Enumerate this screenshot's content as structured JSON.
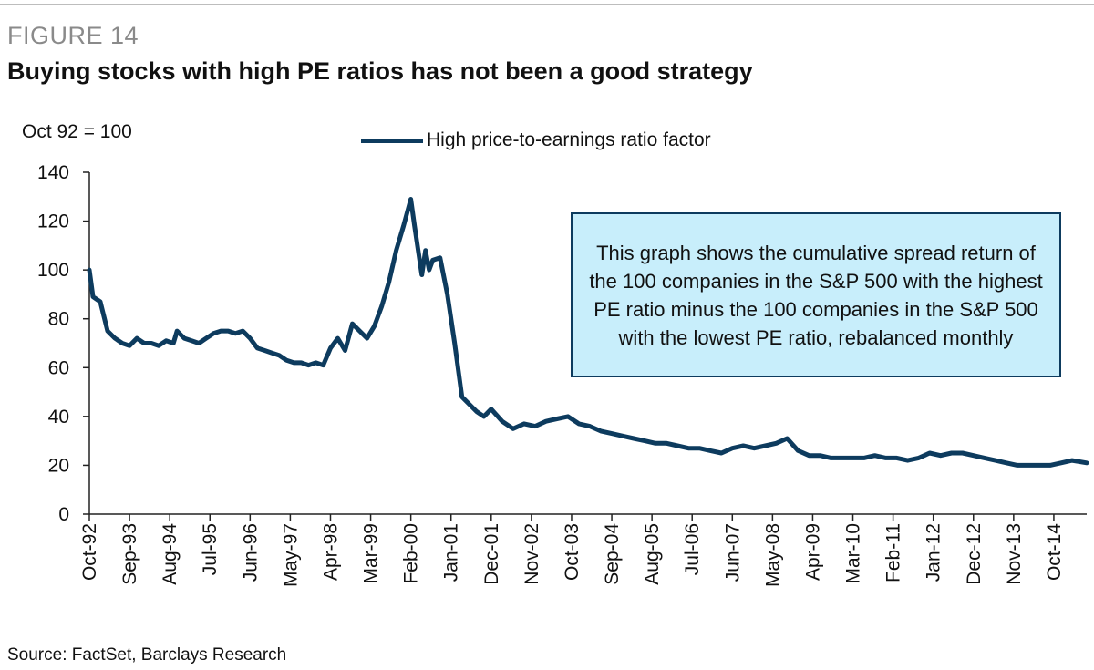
{
  "figure": {
    "label": "FIGURE 14",
    "title": "Buying stocks with high PE ratios has not been a good strategy",
    "source": "Source: FactSet, Barclays Research"
  },
  "colors": {
    "series": "#0d3b5e",
    "callout_bg": "#c8eefb",
    "axis": "#222222"
  },
  "chart_data": {
    "type": "line",
    "ylabel": "Oct 92 = 100",
    "ylim": [
      0,
      140
    ],
    "yticks": [
      0,
      20,
      40,
      60,
      80,
      100,
      120,
      140
    ],
    "xlim": [
      "1992-10",
      "2015-07"
    ],
    "xtick_labels": [
      "Oct-92",
      "Sep-93",
      "Aug-94",
      "Jul-95",
      "Jun-96",
      "May-97",
      "Apr-98",
      "Mar-99",
      "Feb-00",
      "Jan-01",
      "Dec-01",
      "Nov-02",
      "Oct-03",
      "Sep-04",
      "Aug-05",
      "Jul-06",
      "Jun-07",
      "May-08",
      "Apr-09",
      "Mar-10",
      "Feb-11",
      "Jan-12",
      "Dec-12",
      "Nov-13",
      "Oct-14"
    ],
    "annotation": "This graph shows the cumulative spread return of the 100 companies in the S&P 500 with the highest PE ratio minus the 100 companies in the S&P 500 with the lowest PE ratio, rebalanced monthly",
    "series": [
      {
        "name": "High price-to-earnings ratio factor",
        "x": [
          "1992-10",
          "1992-11",
          "1993-01",
          "1993-03",
          "1993-05",
          "1993-07",
          "1993-09",
          "1993-11",
          "1994-01",
          "1994-03",
          "1994-05",
          "1994-07",
          "1994-09",
          "1994-10",
          "1994-12",
          "1995-02",
          "1995-04",
          "1995-06",
          "1995-08",
          "1995-10",
          "1995-12",
          "1996-02",
          "1996-04",
          "1996-06",
          "1996-08",
          "1996-10",
          "1996-12",
          "1997-02",
          "1997-04",
          "1997-06",
          "1997-08",
          "1997-10",
          "1997-12",
          "1998-02",
          "1998-04",
          "1998-06",
          "1998-08",
          "1998-10",
          "1998-12",
          "1999-02",
          "1999-04",
          "1999-06",
          "1999-08",
          "1999-10",
          "1999-12",
          "2000-02",
          "2000-03",
          "2000-04",
          "2000-05",
          "2000-06",
          "2000-07",
          "2000-08",
          "2000-10",
          "2000-12",
          "2001-02",
          "2001-04",
          "2001-06",
          "2001-08",
          "2001-10",
          "2001-12",
          "2002-03",
          "2002-06",
          "2002-09",
          "2002-12",
          "2003-03",
          "2003-06",
          "2003-09",
          "2003-12",
          "2004-03",
          "2004-06",
          "2004-09",
          "2004-12",
          "2005-03",
          "2005-06",
          "2005-09",
          "2005-12",
          "2006-03",
          "2006-06",
          "2006-09",
          "2006-12",
          "2007-03",
          "2007-06",
          "2007-09",
          "2007-12",
          "2008-03",
          "2008-06",
          "2008-09",
          "2008-12",
          "2009-03",
          "2009-06",
          "2009-09",
          "2009-12",
          "2010-03",
          "2010-06",
          "2010-09",
          "2010-12",
          "2011-03",
          "2011-06",
          "2011-09",
          "2011-12",
          "2012-03",
          "2012-06",
          "2012-09",
          "2012-12",
          "2013-03",
          "2013-06",
          "2013-09",
          "2013-12",
          "2014-03",
          "2014-06",
          "2014-09",
          "2014-12",
          "2015-03",
          "2015-07"
        ],
        "values": [
          100,
          89,
          87,
          75,
          72,
          70,
          69,
          72,
          70,
          70,
          69,
          71,
          70,
          75,
          72,
          71,
          70,
          72,
          74,
          75,
          75,
          74,
          75,
          72,
          68,
          67,
          66,
          65,
          63,
          62,
          62,
          61,
          62,
          61,
          68,
          72,
          67,
          78,
          75,
          72,
          77,
          85,
          95,
          108,
          118,
          129,
          118,
          108,
          98,
          108,
          100,
          104,
          105,
          90,
          70,
          48,
          45,
          42,
          40,
          43,
          38,
          35,
          37,
          36,
          38,
          39,
          40,
          37,
          36,
          34,
          33,
          32,
          31,
          30,
          29,
          29,
          28,
          27,
          27,
          26,
          25,
          27,
          28,
          27,
          28,
          29,
          31,
          26,
          24,
          24,
          23,
          23,
          23,
          23,
          24,
          23,
          23,
          22,
          23,
          25,
          24,
          25,
          25,
          24,
          23,
          22,
          21,
          20,
          20,
          20,
          20,
          21,
          22,
          21
        ]
      }
    ]
  }
}
